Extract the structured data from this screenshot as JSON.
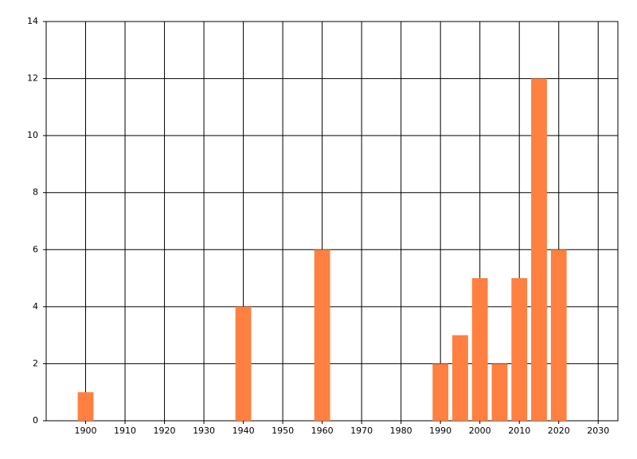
{
  "chart_data": {
    "type": "bar",
    "x": [
      1900,
      1940,
      1960,
      1990,
      1995,
      2000,
      2005,
      2010,
      2015,
      2020
    ],
    "values": [
      1,
      4,
      6,
      2,
      3,
      5,
      2,
      5,
      12,
      6
    ],
    "color": "#ff8040",
    "xlim": [
      1890,
      2035
    ],
    "xticks": [
      1900,
      1910,
      1920,
      1930,
      1940,
      1950,
      1960,
      1970,
      1980,
      1990,
      2000,
      2010,
      2020,
      2030
    ],
    "ylim": [
      0,
      14
    ],
    "yticks": [
      0,
      2,
      4,
      6,
      8,
      10,
      12,
      14
    ],
    "grid": true
  }
}
